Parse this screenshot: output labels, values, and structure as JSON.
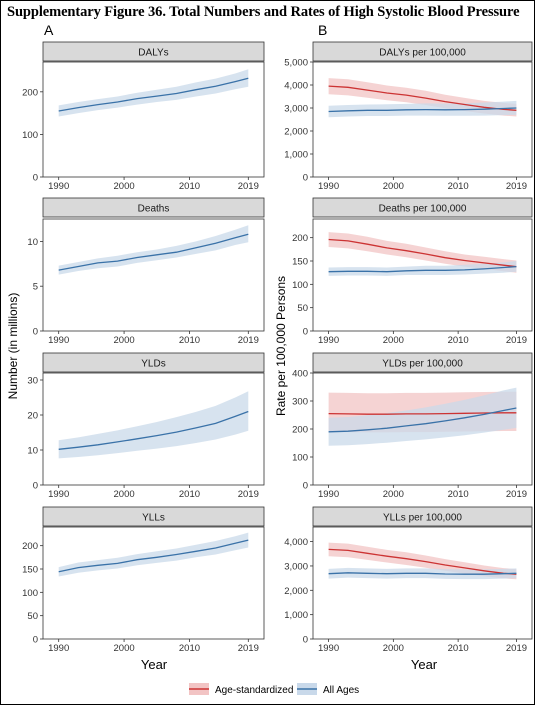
{
  "figure": {
    "title": "Supplementary Figure 36. Total Numbers and Rates of High Systolic Blood Pressure",
    "panel_a_label": "A",
    "panel_b_label": "B",
    "left_ylabel": "Number (in millions)",
    "right_ylabel": "Rate per 100,000 Persons",
    "xlabel": "Year",
    "legend": [
      {
        "label": "Age-standardized",
        "color": "#cc3333",
        "fill": "#f2c4c4"
      },
      {
        "label": "All Ages",
        "color": "#3a72a8",
        "fill": "#c9d9ea"
      }
    ]
  },
  "chart_data": [
    {
      "type": "line",
      "title": "DALYs",
      "column": "A",
      "x": [
        1990,
        1993,
        1996,
        1999,
        2002,
        2005,
        2008,
        2011,
        2014,
        2017,
        2019
      ],
      "xticks": [
        1990,
        2000,
        2010,
        2019
      ],
      "xtick_labels": [
        "1990",
        "2000",
        "2010",
        "2019"
      ],
      "ylim": [
        0,
        270
      ],
      "yticks": [
        0,
        100,
        200
      ],
      "ytick_labels": [
        "0",
        "100",
        "200"
      ],
      "series": [
        {
          "name": "All Ages",
          "color": "#3a72a8",
          "values": [
            155,
            163,
            170,
            176,
            184,
            190,
            196,
            205,
            213,
            224,
            232
          ],
          "lower": [
            142,
            150,
            157,
            163,
            170,
            176,
            181,
            189,
            196,
            206,
            212
          ],
          "upper": [
            168,
            176,
            183,
            189,
            198,
            205,
            212,
            222,
            231,
            243,
            253
          ]
        }
      ]
    },
    {
      "type": "line",
      "title": "DALYs per 100,000",
      "column": "B",
      "x": [
        1990,
        1993,
        1996,
        1999,
        2002,
        2005,
        2008,
        2011,
        2014,
        2017,
        2019
      ],
      "xticks": [
        1990,
        2000,
        2010,
        2019
      ],
      "xtick_labels": [
        "1990",
        "2000",
        "2010",
        "2019"
      ],
      "ylim": [
        0,
        5000
      ],
      "yticks": [
        0,
        1000,
        2000,
        3000,
        4000,
        5000
      ],
      "ytick_labels": [
        "0",
        "1,000",
        "2,000",
        "3,000",
        "4,000",
        "5,000"
      ],
      "series": [
        {
          "name": "Age-standardized",
          "color": "#cc3333",
          "values": [
            3950,
            3900,
            3780,
            3650,
            3560,
            3430,
            3280,
            3150,
            3030,
            2940,
            2900
          ],
          "lower": [
            3600,
            3550,
            3450,
            3340,
            3250,
            3130,
            2990,
            2870,
            2760,
            2670,
            2630
          ],
          "upper": [
            4300,
            4250,
            4120,
            3980,
            3880,
            3750,
            3580,
            3440,
            3310,
            3220,
            3180
          ]
        },
        {
          "name": "All Ages",
          "color": "#3a72a8",
          "values": [
            2850,
            2880,
            2900,
            2900,
            2920,
            2930,
            2920,
            2930,
            2950,
            2980,
            3000
          ],
          "lower": [
            2600,
            2630,
            2650,
            2650,
            2670,
            2670,
            2660,
            2660,
            2670,
            2690,
            2700
          ],
          "upper": [
            3100,
            3130,
            3150,
            3160,
            3180,
            3200,
            3190,
            3210,
            3240,
            3280,
            3310
          ]
        }
      ]
    },
    {
      "type": "line",
      "title": "Deaths",
      "column": "A",
      "x": [
        1990,
        1993,
        1996,
        1999,
        2002,
        2005,
        2008,
        2011,
        2014,
        2017,
        2019
      ],
      "xticks": [
        1990,
        2000,
        2010,
        2019
      ],
      "xtick_labels": [
        "1990",
        "2000",
        "2010",
        "2019"
      ],
      "ylim": [
        0,
        12.5
      ],
      "yticks": [
        0,
        5,
        10
      ],
      "ytick_labels": [
        "0",
        "5",
        "10"
      ],
      "series": [
        {
          "name": "All Ages",
          "color": "#3a72a8",
          "values": [
            6.8,
            7.2,
            7.6,
            7.8,
            8.2,
            8.5,
            8.8,
            9.3,
            9.8,
            10.4,
            10.8
          ],
          "lower": [
            6.3,
            6.7,
            7.0,
            7.2,
            7.6,
            7.9,
            8.2,
            8.6,
            9.0,
            9.6,
            9.9
          ],
          "upper": [
            7.3,
            7.7,
            8.1,
            8.4,
            8.8,
            9.1,
            9.5,
            10.0,
            10.6,
            11.3,
            11.8
          ]
        }
      ]
    },
    {
      "type": "line",
      "title": "Deaths per 100,000",
      "column": "B",
      "x": [
        1990,
        1993,
        1996,
        1999,
        2002,
        2005,
        2008,
        2011,
        2014,
        2017,
        2019
      ],
      "xticks": [
        1990,
        2000,
        2010,
        2019
      ],
      "xtick_labels": [
        "1990",
        "2000",
        "2010",
        "2019"
      ],
      "ylim": [
        0,
        240
      ],
      "yticks": [
        0,
        50,
        100,
        150,
        200
      ],
      "ytick_labels": [
        "0",
        "50",
        "100",
        "150",
        "200"
      ],
      "series": [
        {
          "name": "Age-standardized",
          "color": "#cc3333",
          "values": [
            196,
            193,
            186,
            178,
            172,
            165,
            157,
            151,
            146,
            141,
            138
          ],
          "lower": [
            180,
            177,
            171,
            164,
            158,
            151,
            144,
            138,
            133,
            128,
            125
          ],
          "upper": [
            212,
            209,
            202,
            193,
            187,
            179,
            171,
            164,
            159,
            154,
            151
          ]
        },
        {
          "name": "All Ages",
          "color": "#3a72a8",
          "values": [
            127,
            128,
            128,
            127,
            129,
            130,
            130,
            131,
            133,
            136,
            138
          ],
          "lower": [
            118,
            119,
            119,
            118,
            120,
            120,
            120,
            121,
            123,
            125,
            127
          ],
          "upper": [
            136,
            137,
            137,
            136,
            138,
            140,
            140,
            142,
            144,
            147,
            150
          ]
        }
      ]
    },
    {
      "type": "line",
      "title": "YLDs",
      "column": "A",
      "x": [
        1990,
        1993,
        1996,
        1999,
        2002,
        2005,
        2008,
        2011,
        2014,
        2017,
        2019
      ],
      "xticks": [
        1990,
        2000,
        2010,
        2019
      ],
      "xtick_labels": [
        "1990",
        "2000",
        "2010",
        "2019"
      ],
      "ylim": [
        0,
        32
      ],
      "yticks": [
        0,
        10,
        20,
        30
      ],
      "ytick_labels": [
        "0",
        "10",
        "20",
        "30"
      ],
      "series": [
        {
          "name": "All Ages",
          "color": "#3a72a8",
          "values": [
            10.2,
            10.8,
            11.5,
            12.3,
            13.2,
            14.1,
            15.1,
            16.3,
            17.6,
            19.6,
            21.0
          ],
          "lower": [
            7.6,
            8.0,
            8.5,
            9.1,
            9.8,
            10.4,
            11.1,
            12.0,
            13.0,
            14.4,
            15.5
          ],
          "upper": [
            12.8,
            13.6,
            14.6,
            15.6,
            16.8,
            18.0,
            19.4,
            20.9,
            22.6,
            25.0,
            26.8
          ]
        }
      ]
    },
    {
      "type": "line",
      "title": "YLDs per 100,000",
      "column": "B",
      "x": [
        1990,
        1993,
        1996,
        1999,
        2002,
        2005,
        2008,
        2011,
        2014,
        2017,
        2019
      ],
      "xticks": [
        1990,
        2000,
        2010,
        2019
      ],
      "xtick_labels": [
        "1990",
        "2000",
        "2010",
        "2019"
      ],
      "ylim": [
        0,
        400
      ],
      "yticks": [
        0,
        100,
        200,
        300,
        400
      ],
      "ytick_labels": [
        "0",
        "100",
        "200",
        "300",
        "400"
      ],
      "series": [
        {
          "name": "Age-standardized",
          "color": "#cc3333",
          "values": [
            255,
            254,
            253,
            253,
            254,
            254,
            255,
            256,
            257,
            258,
            258
          ],
          "lower": [
            190,
            189,
            188,
            188,
            189,
            189,
            190,
            191,
            192,
            193,
            193
          ],
          "upper": [
            330,
            329,
            328,
            328,
            329,
            329,
            330,
            331,
            332,
            333,
            333
          ]
        },
        {
          "name": "All Ages",
          "color": "#3a72a8",
          "values": [
            190,
            192,
            197,
            203,
            211,
            219,
            229,
            240,
            252,
            266,
            275
          ],
          "lower": [
            140,
            142,
            146,
            151,
            157,
            163,
            170,
            178,
            187,
            197,
            204
          ],
          "upper": [
            240,
            243,
            249,
            257,
            266,
            277,
            290,
            304,
            320,
            338,
            348
          ]
        }
      ]
    },
    {
      "type": "line",
      "title": "YLLs",
      "column": "A",
      "x": [
        1990,
        1993,
        1996,
        1999,
        2002,
        2005,
        2008,
        2011,
        2014,
        2017,
        2019
      ],
      "xticks": [
        1990,
        2000,
        2010,
        2019
      ],
      "xtick_labels": [
        "1990",
        "2000",
        "2010",
        "2019"
      ],
      "ylim": [
        0,
        240
      ],
      "yticks": [
        0,
        50,
        100,
        150,
        200
      ],
      "ytick_labels": [
        "0",
        "50",
        "100",
        "150",
        "200"
      ],
      "series": [
        {
          "name": "All Ages",
          "color": "#3a72a8",
          "values": [
            144,
            153,
            158,
            162,
            170,
            175,
            181,
            188,
            195,
            205,
            212
          ],
          "lower": [
            134,
            142,
            147,
            151,
            158,
            163,
            168,
            175,
            181,
            190,
            196
          ],
          "upper": [
            154,
            164,
            169,
            174,
            182,
            188,
            194,
            202,
            210,
            220,
            228
          ]
        }
      ]
    },
    {
      "type": "line",
      "title": "YLLs per 100,000",
      "column": "B",
      "x": [
        1990,
        1993,
        1996,
        1999,
        2002,
        2005,
        2008,
        2011,
        2014,
        2017,
        2019
      ],
      "xticks": [
        1990,
        2000,
        2010,
        2019
      ],
      "xtick_labels": [
        "1990",
        "2000",
        "2010",
        "2019"
      ],
      "ylim": [
        0,
        4600
      ],
      "yticks": [
        0,
        1000,
        2000,
        3000,
        4000
      ],
      "ytick_labels": [
        "0",
        "1,000",
        "2,000",
        "3,000",
        "4,000"
      ],
      "series": [
        {
          "name": "Age-standardized",
          "color": "#cc3333",
          "values": [
            3680,
            3640,
            3520,
            3400,
            3300,
            3180,
            3040,
            2920,
            2800,
            2700,
            2660
          ],
          "lower": [
            3400,
            3360,
            3250,
            3140,
            3040,
            2930,
            2800,
            2690,
            2580,
            2490,
            2450
          ],
          "upper": [
            3960,
            3920,
            3790,
            3660,
            3560,
            3430,
            3280,
            3150,
            3020,
            2910,
            2870
          ]
        },
        {
          "name": "All Ages",
          "color": "#3a72a8",
          "values": [
            2680,
            2720,
            2700,
            2680,
            2700,
            2700,
            2670,
            2660,
            2660,
            2680,
            2700
          ],
          "lower": [
            2480,
            2520,
            2500,
            2480,
            2500,
            2500,
            2470,
            2460,
            2460,
            2480,
            2500
          ],
          "upper": [
            2880,
            2920,
            2900,
            2880,
            2900,
            2900,
            2870,
            2860,
            2860,
            2880,
            2900
          ]
        }
      ]
    }
  ]
}
